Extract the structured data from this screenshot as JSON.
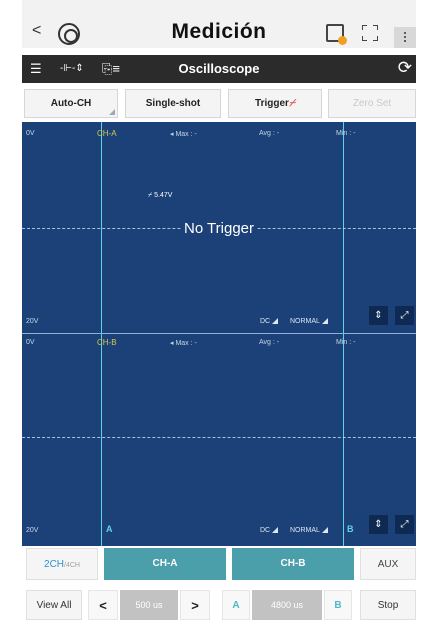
{
  "appbar": {
    "back_glyph": "<",
    "title": "Medición",
    "icons": [
      "vehicle-icon",
      "calendar-icon",
      "focus-icon",
      "kebab-icon"
    ]
  },
  "toolbar": {
    "title": "Oscilloscope",
    "icons": [
      "sliders-icon",
      "probe-icon",
      "save-list-icon",
      "refresh-icon"
    ]
  },
  "buttons": {
    "auto_ch": "Auto-CH",
    "single_shot": "Single-shot",
    "trigger": "Trigger",
    "zero_set": "Zero Set"
  },
  "scope": {
    "panel_a": {
      "volt_top": "0V",
      "volt_bottom": "20V",
      "channel": "CH-A",
      "max": "◂ Max : -",
      "avg": "Avg : -",
      "min": "Min : -",
      "coupling": "DC",
      "mode": "NORMAL",
      "trigger_value": "5.47V",
      "status": "No Trigger"
    },
    "panel_b": {
      "volt_top": "0V",
      "volt_bottom": "20V",
      "channel": "CH-B",
      "max": "◂ Max : -",
      "avg": "Avg : -",
      "min": "Min : -",
      "coupling": "DC",
      "mode": "NORMAL",
      "marker_a": "A",
      "marker_b": "B"
    },
    "colors": {
      "background": "#1b4178",
      "cursor": "#5fd3e6",
      "channel_label": "#d7c84a"
    }
  },
  "channels": {
    "mode_main": "2CH",
    "mode_alt": "/4CH",
    "ch_a": "CH-A",
    "ch_b": "CH-B",
    "aux": "AUX"
  },
  "bottom": {
    "view_all": "View All",
    "prev": "<",
    "timebase": "500 us",
    "next": ">",
    "cursor_a": "A",
    "delta": "4800 us",
    "cursor_b": "B",
    "stop": "Stop"
  }
}
